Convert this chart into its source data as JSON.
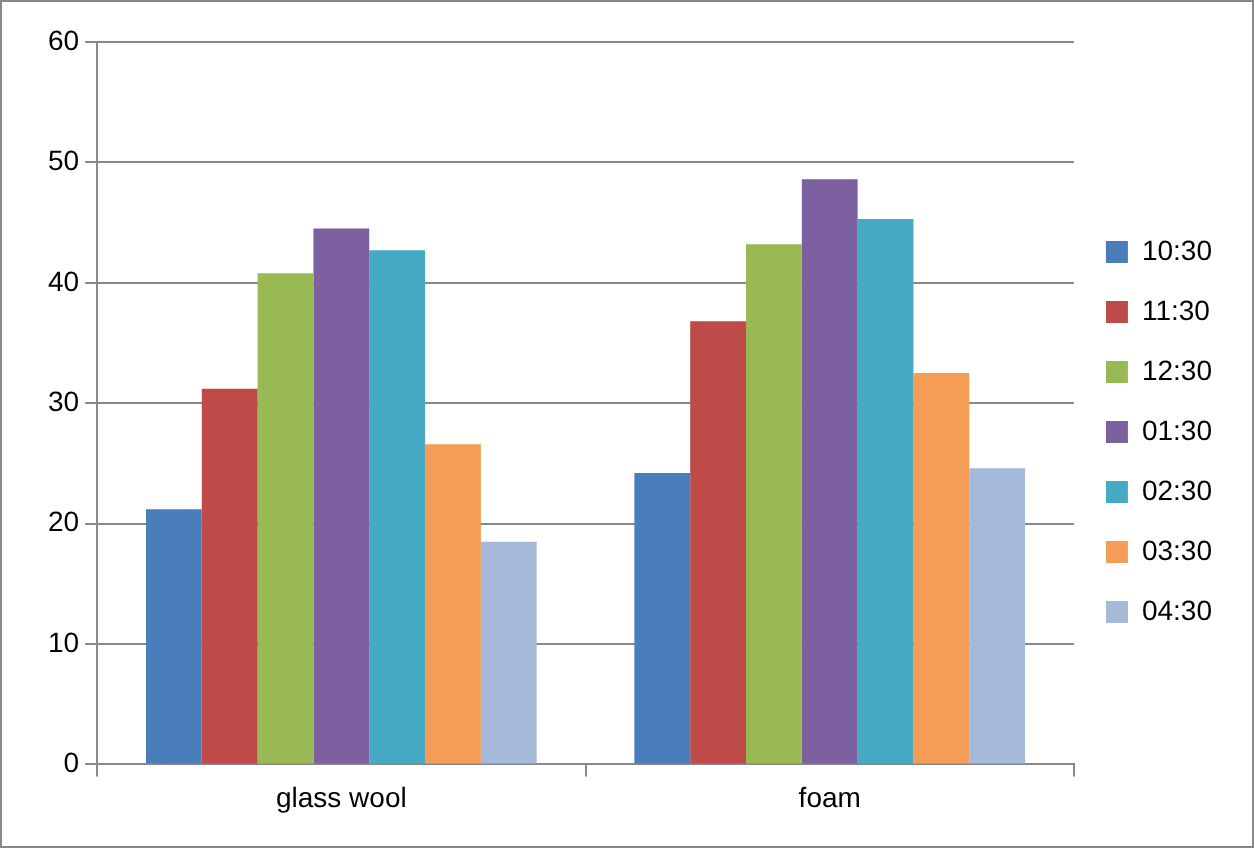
{
  "chart_data": {
    "type": "bar",
    "categories": [
      "glass wool",
      "foam"
    ],
    "series": [
      {
        "name": "10:30",
        "color": "#4a7ebb",
        "values": [
          21.2,
          24.2
        ]
      },
      {
        "name": "11:30",
        "color": "#be4b48",
        "values": [
          31.2,
          36.8
        ]
      },
      {
        "name": "12:30",
        "color": "#98b954",
        "values": [
          40.8,
          43.2
        ]
      },
      {
        "name": "01:30",
        "color": "#7d60a0",
        "values": [
          44.5,
          48.6
        ]
      },
      {
        "name": "02:30",
        "color": "#46aac5",
        "values": [
          42.7,
          45.3
        ]
      },
      {
        "name": "03:30",
        "color": "#f59d56",
        "values": [
          26.6,
          32.5
        ]
      },
      {
        "name": "04:30",
        "color": "#a5b9db",
        "values": [
          18.5,
          24.6
        ]
      }
    ],
    "ylim": [
      0,
      60
    ],
    "yticks": [
      0,
      10,
      20,
      30,
      40,
      50,
      60
    ],
    "grid": "y",
    "legend": "right"
  }
}
